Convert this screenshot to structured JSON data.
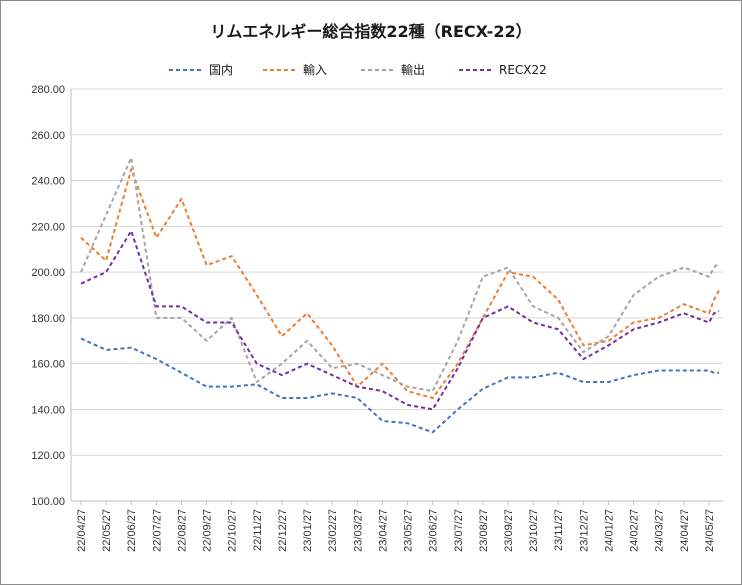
{
  "chart_data": {
    "type": "line",
    "title": "リムエネルギー総合指数22種（RECX-22）",
    "xlabel": "",
    "ylabel": "",
    "ylim": [
      100,
      280
    ],
    "yticks": [
      "100.00",
      "120.00",
      "140.00",
      "160.00",
      "180.00",
      "200.00",
      "220.00",
      "240.00",
      "260.00",
      "280.00"
    ],
    "x_labels": [
      "22/04/27",
      "22/05/27",
      "22/06/27",
      "22/07/27",
      "22/08/27",
      "22/09/27",
      "22/10/27",
      "22/11/27",
      "22/12/27",
      "23/01/27",
      "23/02/27",
      "23/03/27",
      "23/04/27",
      "23/05/27",
      "23/06/27",
      "23/07/27",
      "23/08/27",
      "23/09/27",
      "23/10/27",
      "23/11/27",
      "23/12/27",
      "24/01/27",
      "24/02/27",
      "24/03/27",
      "24/04/27",
      "24/05/27"
    ],
    "x_month_index": [
      0,
      1,
      2,
      3,
      4,
      5,
      6,
      7,
      8,
      9,
      10,
      11,
      12,
      13,
      14,
      15,
      16,
      17,
      18,
      19,
      20,
      21,
      22,
      23,
      24,
      25,
      25.2,
      25.4
    ],
    "grid": true,
    "legend_position": "top",
    "series": [
      {
        "name": "国内",
        "color": "#4472c4",
        "values": [
          171,
          166,
          167,
          162,
          156,
          150,
          150,
          151,
          145,
          145,
          147,
          145,
          135,
          134,
          130,
          140,
          149,
          154,
          154,
          156,
          152,
          152,
          155,
          157,
          157,
          157,
          156,
          156
        ]
      },
      {
        "name": "輸入",
        "color": "#ed7d31",
        "values": [
          215,
          205,
          245,
          215,
          232,
          203,
          207,
          190,
          172,
          182,
          168,
          150,
          160,
          148,
          145,
          160,
          180,
          200,
          198,
          188,
          168,
          170,
          178,
          180,
          186,
          182,
          188,
          192
        ]
      },
      {
        "name": "輸出",
        "color": "#a5a5a5",
        "values": [
          200,
          225,
          250,
          180,
          180,
          170,
          180,
          152,
          160,
          170,
          158,
          160,
          155,
          150,
          148,
          170,
          198,
          202,
          185,
          180,
          165,
          172,
          190,
          198,
          202,
          198,
          202,
          204
        ]
      },
      {
        "name": "RECX22",
        "color": "#7030a0",
        "values": [
          195,
          200,
          218,
          185,
          185,
          178,
          178,
          160,
          155,
          160,
          155,
          150,
          148,
          142,
          140,
          158,
          180,
          185,
          178,
          175,
          162,
          168,
          175,
          178,
          182,
          178,
          182,
          183
        ]
      }
    ]
  }
}
